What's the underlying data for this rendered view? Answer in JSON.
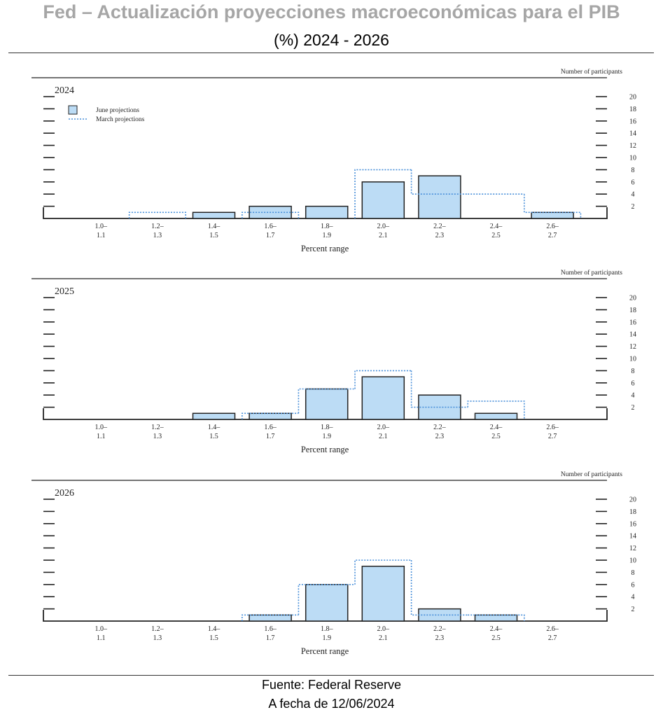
{
  "header": {
    "title": "Fed – Actualización proyecciones macroeconómicas para el PIB",
    "subtitle": "(%) 2024 - 2026"
  },
  "footer": {
    "source": "Fuente: Federal Reserve",
    "date": "A fecha de 12/06/2024"
  },
  "colors": {
    "bar_fill": "#bcdcf5",
    "bar_stroke": "#222222",
    "march_line": "#4a90d9",
    "title": "#a6a6a6"
  },
  "chart_data": [
    {
      "type": "bar",
      "title": "2024",
      "xlabel": "Percent range",
      "ylabel": "Number of participants",
      "ylim": [
        0,
        20
      ],
      "yticks": [
        2,
        4,
        6,
        8,
        10,
        12,
        14,
        16,
        18,
        20
      ],
      "categories": [
        "1.0–1.1",
        "1.2–1.3",
        "1.4–1.5",
        "1.6–1.7",
        "1.8–1.9",
        "2.0–2.1",
        "2.2–2.3",
        "2.4–2.5",
        "2.6–2.7"
      ],
      "tick_labels": [
        {
          "top": "1.0–",
          "bottom": "1.1"
        },
        {
          "top": "1.2–",
          "bottom": "1.3"
        },
        {
          "top": "1.4–",
          "bottom": "1.5"
        },
        {
          "top": "1.6–",
          "bottom": "1.7"
        },
        {
          "top": "1.8–",
          "bottom": "1.9"
        },
        {
          "top": "2.0–",
          "bottom": "2.1"
        },
        {
          "top": "2.2–",
          "bottom": "2.3"
        },
        {
          "top": "2.4–",
          "bottom": "2.5"
        },
        {
          "top": "2.6–",
          "bottom": "2.7"
        }
      ],
      "legend": {
        "position": "top-left",
        "entries": [
          "June projections",
          "March projections"
        ]
      },
      "series": [
        {
          "name": "June projections",
          "style": "bar",
          "values": [
            0,
            0,
            1,
            2,
            2,
            6,
            7,
            0,
            1
          ]
        },
        {
          "name": "March projections",
          "style": "dotted-step",
          "values": [
            0,
            1,
            0,
            1,
            0,
            8,
            4,
            4,
            1
          ]
        }
      ]
    },
    {
      "type": "bar",
      "title": "2025",
      "xlabel": "Percent range",
      "ylabel": "Number of participants",
      "ylim": [
        0,
        20
      ],
      "yticks": [
        2,
        4,
        6,
        8,
        10,
        12,
        14,
        16,
        18,
        20
      ],
      "categories": [
        "1.0–1.1",
        "1.2–1.3",
        "1.4–1.5",
        "1.6–1.7",
        "1.8–1.9",
        "2.0–2.1",
        "2.2–2.3",
        "2.4–2.5",
        "2.6–2.7"
      ],
      "tick_labels": [
        {
          "top": "1.0–",
          "bottom": "1.1"
        },
        {
          "top": "1.2–",
          "bottom": "1.3"
        },
        {
          "top": "1.4–",
          "bottom": "1.5"
        },
        {
          "top": "1.6–",
          "bottom": "1.7"
        },
        {
          "top": "1.8–",
          "bottom": "1.9"
        },
        {
          "top": "2.0–",
          "bottom": "2.1"
        },
        {
          "top": "2.2–",
          "bottom": "2.3"
        },
        {
          "top": "2.4–",
          "bottom": "2.5"
        },
        {
          "top": "2.6–",
          "bottom": "2.7"
        }
      ],
      "series": [
        {
          "name": "June projections",
          "style": "bar",
          "values": [
            0,
            0,
            1,
            1,
            5,
            7,
            4,
            1,
            0
          ]
        },
        {
          "name": "March projections",
          "style": "dotted-step",
          "values": [
            0,
            0,
            0,
            1,
            5,
            8,
            2,
            3,
            0
          ]
        }
      ]
    },
    {
      "type": "bar",
      "title": "2026",
      "xlabel": "Percent range",
      "ylabel": "Number of participants",
      "ylim": [
        0,
        20
      ],
      "yticks": [
        2,
        4,
        6,
        8,
        10,
        12,
        14,
        16,
        18,
        20
      ],
      "categories": [
        "1.0–1.1",
        "1.2–1.3",
        "1.4–1.5",
        "1.6–1.7",
        "1.8–1.9",
        "2.0–2.1",
        "2.2–2.3",
        "2.4–2.5",
        "2.6–2.7"
      ],
      "tick_labels": [
        {
          "top": "1.0–",
          "bottom": "1.1"
        },
        {
          "top": "1.2–",
          "bottom": "1.3"
        },
        {
          "top": "1.4–",
          "bottom": "1.5"
        },
        {
          "top": "1.6–",
          "bottom": "1.7"
        },
        {
          "top": "1.8–",
          "bottom": "1.9"
        },
        {
          "top": "2.0–",
          "bottom": "2.1"
        },
        {
          "top": "2.2–",
          "bottom": "2.3"
        },
        {
          "top": "2.4–",
          "bottom": "2.5"
        },
        {
          "top": "2.6–",
          "bottom": "2.7"
        }
      ],
      "series": [
        {
          "name": "June projections",
          "style": "bar",
          "values": [
            0,
            0,
            0,
            1,
            6,
            9,
            2,
            1,
            0
          ]
        },
        {
          "name": "March projections",
          "style": "dotted-step",
          "values": [
            0,
            0,
            0,
            1,
            6,
            10,
            1,
            1,
            0
          ]
        }
      ]
    }
  ]
}
